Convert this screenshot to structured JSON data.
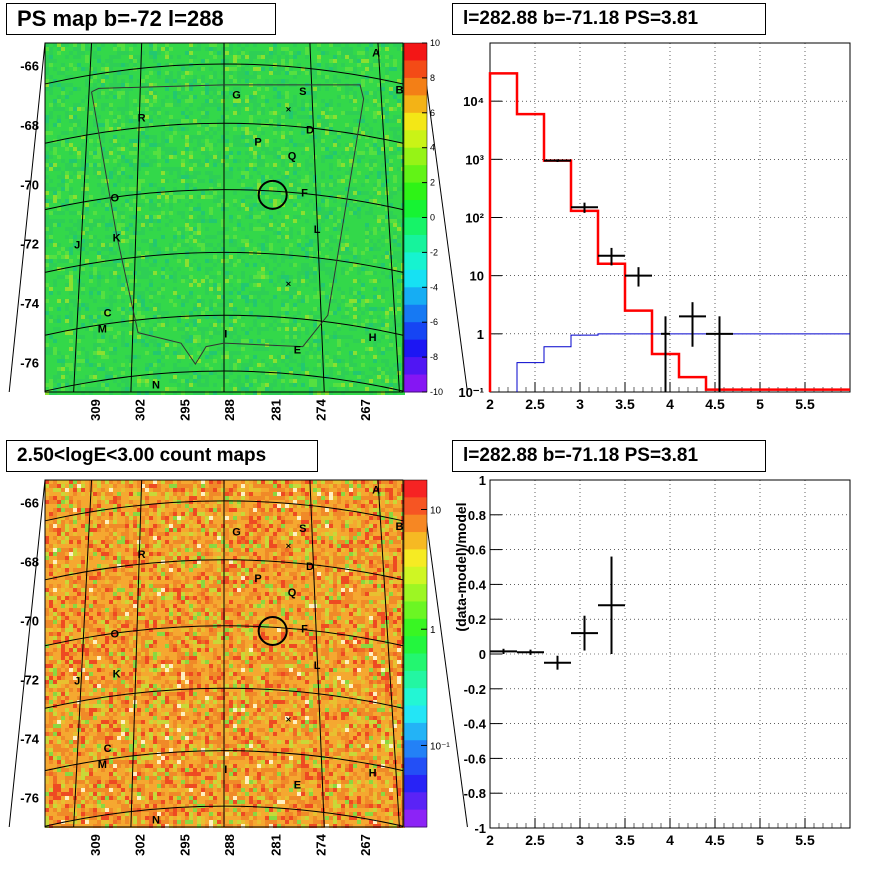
{
  "panels": {
    "tl_title": "PS map b=-72 l=288",
    "tr_title": "l=282.88 b=-71.18 PS=3.81",
    "bl_title": "2.50<logE<3.00 count maps",
    "br_title": "l=282.88 b=-71.18 PS=3.81"
  },
  "colors": {
    "green_map": "#2fd84a",
    "orange_map": "#f0a030",
    "red_line": "#ff0000",
    "blue_line": "#0000cc"
  },
  "maps": {
    "y_ticks": [
      "-66",
      "-68",
      "-70",
      "-72",
      "-74",
      "-76"
    ],
    "x_ticks": [
      "309",
      "302",
      "295",
      "288",
      "281",
      "274",
      "267"
    ],
    "source_labels": [
      {
        "t": "A"
      },
      {
        "t": "B"
      },
      {
        "t": "G"
      },
      {
        "t": "S"
      },
      {
        "t": "R"
      },
      {
        "t": "D"
      },
      {
        "t": "P"
      },
      {
        "t": "Q"
      },
      {
        "t": "O"
      },
      {
        "t": "F"
      },
      {
        "t": "J"
      },
      {
        "t": "K"
      },
      {
        "t": "L"
      },
      {
        "t": "C"
      },
      {
        "t": "M"
      },
      {
        "t": "H"
      },
      {
        "t": "E"
      },
      {
        "t": "I"
      },
      {
        "t": "N"
      }
    ],
    "ps_colorbar_ticks": [
      "10",
      "8",
      "6",
      "4",
      "2",
      "0",
      "-2",
      "-4",
      "-6",
      "-8",
      "-10"
    ],
    "count_colorbar_ticks": [
      "10",
      "1",
      "10⁻¹"
    ]
  },
  "chart_data": [
    {
      "type": "line",
      "panel": "top-right",
      "title": "l=282.88 b=-71.18 PS=3.81",
      "xlim": [
        2,
        6
      ],
      "ylim": [
        0.1,
        100000
      ],
      "log_y": true,
      "grid": true,
      "x_tick_labels": [
        "2",
        "2.5",
        "3",
        "3.5",
        "4",
        "4.5",
        "5",
        "5.5"
      ],
      "y_tick_labels": [
        "10⁻¹",
        "1",
        "10",
        "10²",
        "10³",
        "10⁴"
      ],
      "series": [
        {
          "style": "step-red",
          "edges": [
            2,
            2.3,
            2.6,
            2.9,
            3.2,
            3.5,
            3.8,
            4.1,
            4.4,
            6
          ],
          "values": [
            30000,
            6000,
            950,
            130,
            16,
            2.5,
            0.45,
            0.18,
            0.11
          ]
        },
        {
          "style": "step-blue",
          "edges": [
            2.3,
            2.6,
            2.9,
            3.2,
            3.5,
            3.8,
            4.1,
            4.4,
            4.7,
            6
          ],
          "values": [
            0.32,
            0.6,
            0.95,
            1,
            1,
            1,
            1,
            1,
            1
          ]
        },
        {
          "style": "errorbars",
          "x": [
            2.75,
            3.05,
            3.35,
            3.65,
            3.95,
            4.25,
            4.55
          ],
          "y": [
            950,
            150,
            22,
            10,
            1,
            2,
            1
          ],
          "xerr": [
            0.15,
            0.15,
            0.15,
            0.15,
            0.05,
            0.15,
            0.15
          ],
          "ylo": [
            900,
            120,
            15,
            6.5,
            0.1,
            0.6,
            0.1
          ],
          "yhi": [
            1000,
            180,
            30,
            14,
            2,
            3.5,
            2
          ]
        }
      ]
    },
    {
      "type": "scatter",
      "panel": "bottom-right",
      "title": "l=282.88 b=-71.18 PS=3.81",
      "ylabel": "(data-model)/model",
      "xlim": [
        2,
        6
      ],
      "ylim": [
        -1,
        1
      ],
      "grid": true,
      "x_tick_labels": [
        "2",
        "2.5",
        "3",
        "3.5",
        "4",
        "4.5",
        "5",
        "5.5"
      ],
      "y_tick_labels": [
        "-1",
        "-0.8",
        "-0.6",
        "-0.4",
        "-0.2",
        "0",
        "0.2",
        "0.4",
        "0.6",
        "0.8",
        "1"
      ],
      "points": [
        {
          "x": 2.15,
          "y": 0.015,
          "xerr": 0.15,
          "yerr": 0.015
        },
        {
          "x": 2.45,
          "y": 0.01,
          "xerr": 0.15,
          "yerr": 0.015
        },
        {
          "x": 2.75,
          "y": -0.05,
          "xerr": 0.15,
          "yerr": 0.04
        },
        {
          "x": 3.05,
          "y": 0.12,
          "xerr": 0.15,
          "yerr": 0.1
        },
        {
          "x": 3.35,
          "y": 0.28,
          "xerr": 0.15,
          "yerr": 0.28
        }
      ]
    }
  ]
}
